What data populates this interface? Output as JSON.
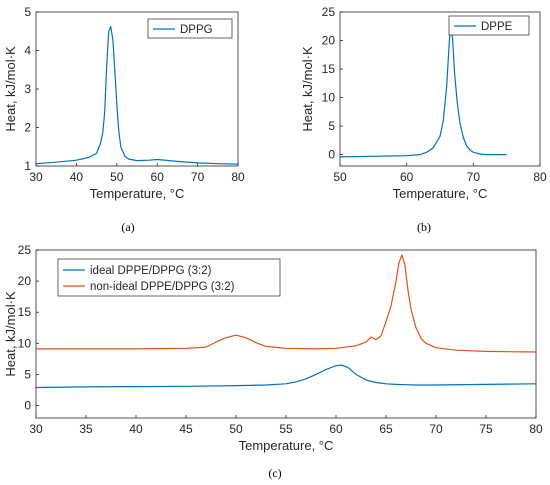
{
  "chart_data": [
    {
      "id": "a",
      "type": "line",
      "caption": "(a)",
      "xlabel": "Temperature, °C",
      "ylabel": "Heat, kJ/mol·K",
      "xlim": [
        30,
        80
      ],
      "ylim": [
        1,
        5
      ],
      "xticks": [
        30,
        40,
        50,
        60,
        70,
        80
      ],
      "yticks": [
        1,
        2,
        3,
        4,
        5
      ],
      "legend_position": "top-right",
      "series": [
        {
          "name": "DPPG",
          "color": "#0072BD",
          "x": [
            30,
            35,
            40,
            43,
            45,
            46,
            46.5,
            47,
            47.5,
            48,
            48.5,
            49,
            49.5,
            50,
            50.5,
            51,
            52,
            53,
            55,
            58,
            60,
            65,
            70,
            75,
            80
          ],
          "y": [
            1.06,
            1.1,
            1.15,
            1.22,
            1.33,
            1.6,
            1.85,
            2.4,
            3.6,
            4.5,
            4.62,
            4.3,
            3.5,
            2.6,
            1.9,
            1.5,
            1.25,
            1.18,
            1.14,
            1.15,
            1.17,
            1.12,
            1.08,
            1.06,
            1.05
          ]
        }
      ]
    },
    {
      "id": "b",
      "type": "line",
      "caption": "(b)",
      "xlabel": "Temperature, °C",
      "ylabel": "Heat, kJ/mol·K",
      "xlim": [
        50,
        80
      ],
      "ylim": [
        -2,
        25
      ],
      "xticks": [
        50,
        60,
        70,
        80
      ],
      "yticks": [
        0,
        5,
        10,
        15,
        20,
        25
      ],
      "legend_position": "top-right",
      "series": [
        {
          "name": "DPPE",
          "color": "#0072BD",
          "x": [
            50,
            55,
            60,
            62,
            63,
            64,
            65,
            65.5,
            66,
            66.3,
            66.6,
            66.9,
            67.2,
            67.6,
            68,
            68.5,
            69,
            69.5,
            70,
            71,
            72,
            75
          ],
          "y": [
            -0.4,
            -0.3,
            -0.2,
            0,
            0.4,
            1.2,
            3.2,
            6,
            12,
            18,
            23.5,
            20,
            14,
            9,
            5.5,
            3,
            1.5,
            0.8,
            0.4,
            0.1,
            0,
            0
          ]
        }
      ]
    },
    {
      "id": "c",
      "type": "line",
      "caption": "(c)",
      "xlabel": "Temperature, °C",
      "ylabel": "Heat, kJ/mol·K",
      "xlim": [
        30,
        80
      ],
      "ylim": [
        -2,
        25
      ],
      "xticks": [
        30,
        35,
        40,
        45,
        50,
        55,
        60,
        65,
        70,
        75,
        80
      ],
      "yticks": [
        0,
        5,
        10,
        15,
        20,
        25
      ],
      "legend_position": "top-left",
      "series": [
        {
          "name": "ideal DPPE/DPPG (3:2)",
          "color": "#0072BD",
          "x": [
            30,
            35,
            40,
            45,
            50,
            53,
            55,
            56,
            57,
            58,
            59,
            60,
            60.6,
            61.2,
            62,
            63,
            64,
            65,
            66,
            67,
            68,
            70,
            75,
            80
          ],
          "y": [
            2.9,
            3,
            3.05,
            3.1,
            3.2,
            3.3,
            3.5,
            3.8,
            4.3,
            5,
            5.8,
            6.4,
            6.5,
            6.1,
            5,
            4.1,
            3.7,
            3.5,
            3.4,
            3.35,
            3.3,
            3.3,
            3.4,
            3.5
          ]
        },
        {
          "name": "non-ideal DPPE/DPPG (3:2)",
          "color": "#D95319",
          "x": [
            30,
            40,
            45,
            47,
            48,
            49,
            50,
            51,
            52,
            53,
            55,
            58,
            60,
            62,
            63,
            63.5,
            64,
            64.5,
            65,
            65.5,
            66,
            66.3,
            66.6,
            66.9,
            67.2,
            67.5,
            68,
            68.5,
            69,
            70,
            72,
            75,
            80
          ],
          "y": [
            9.1,
            9.1,
            9.2,
            9.4,
            10.2,
            10.9,
            11.3,
            10.9,
            10.1,
            9.5,
            9.2,
            9.1,
            9.2,
            9.6,
            10.2,
            11,
            10.6,
            11.2,
            13.5,
            16,
            20,
            23,
            24.2,
            22.5,
            18.5,
            15.5,
            12.5,
            10.8,
            10,
            9.3,
            8.9,
            8.7,
            8.6
          ]
        }
      ]
    }
  ]
}
